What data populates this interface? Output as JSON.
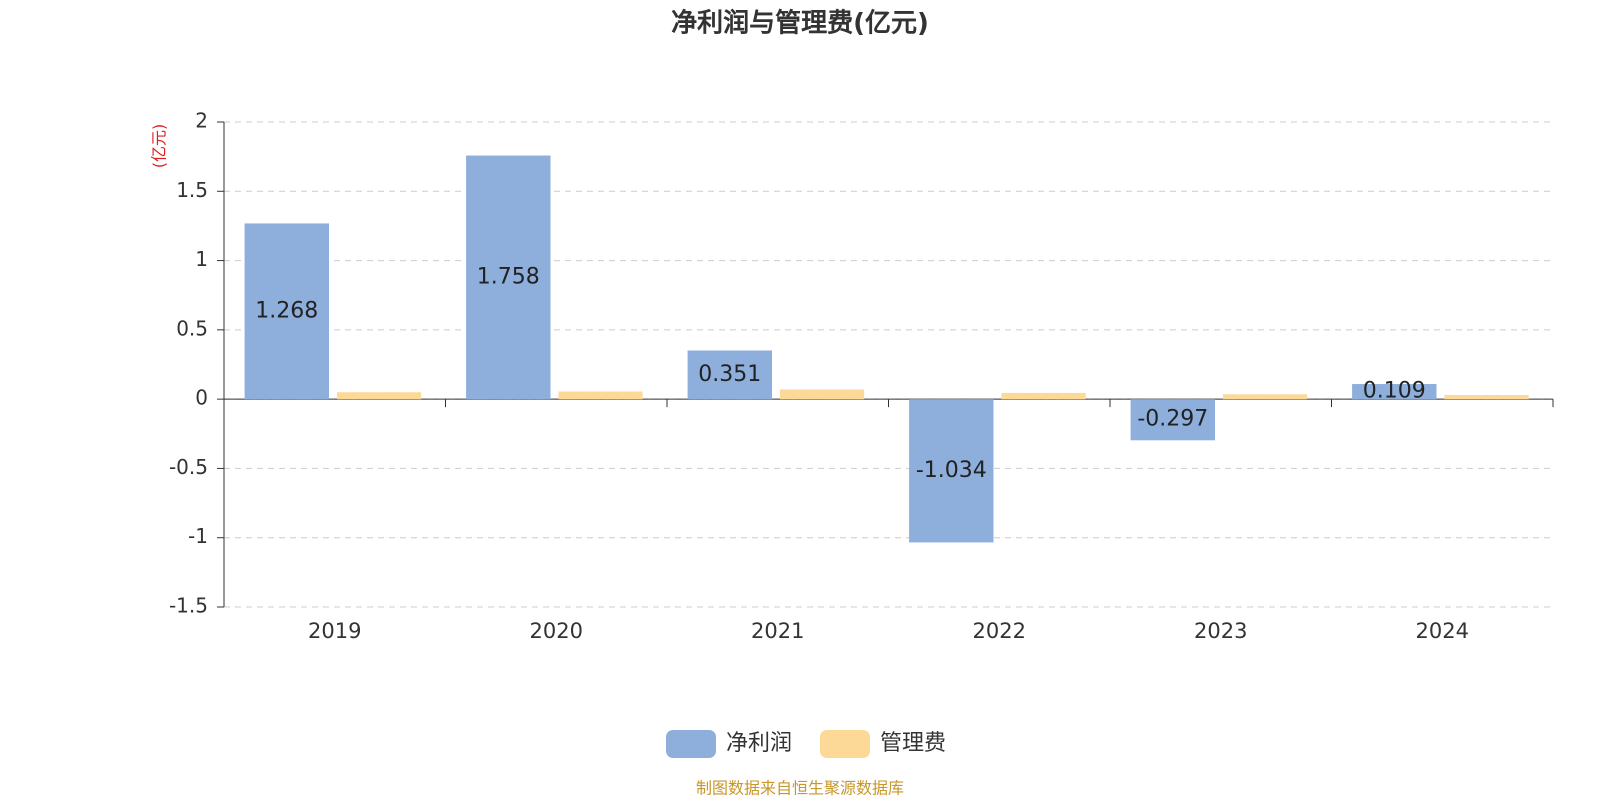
{
  "chart_data": {
    "type": "bar",
    "title": "净利润与管理费(亿元)",
    "y_label": "(亿元)",
    "categories": [
      "2019",
      "2020",
      "2021",
      "2022",
      "2023",
      "2024"
    ],
    "series": [
      {
        "name": "净利润",
        "color": "#8eaedb",
        "values": [
          1.268,
          1.758,
          0.351,
          -1.034,
          -0.297,
          0.109
        ],
        "show_labels": true
      },
      {
        "name": "管理费",
        "color": "#fdd997",
        "values": [
          0.05,
          0.055,
          0.07,
          0.045,
          0.035,
          0.03
        ],
        "show_labels": false
      }
    ],
    "ylim": [
      -1.5,
      2
    ],
    "yticks": [
      -1.5,
      -1,
      -0.5,
      0,
      0.5,
      1,
      1.5,
      2
    ],
    "grid": true,
    "legend": "bottom",
    "source": "制图数据来自恒生聚源数据库"
  }
}
